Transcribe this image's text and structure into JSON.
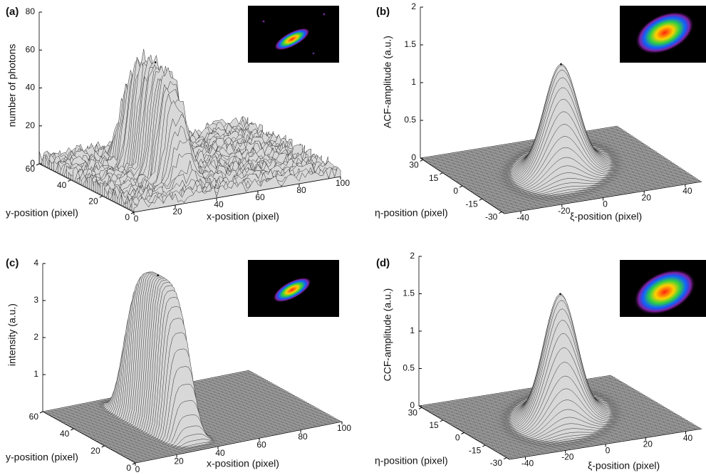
{
  "chart_data": [
    {
      "type": "surface",
      "panel": "(a)",
      "zlabel": "number of photons",
      "xlabel": "x-position (pixel)",
      "ylabel": "y-position (pixel)",
      "xlim": [
        0,
        100
      ],
      "ylim": [
        0,
        60
      ],
      "zlim": [
        0,
        80
      ],
      "xticks": [
        0,
        20,
        40,
        60,
        80,
        100
      ],
      "yticks": [
        0,
        20,
        40,
        60
      ],
      "zticks": [
        0,
        20,
        40,
        60,
        80
      ],
      "peak": 60
    },
    {
      "type": "surface",
      "panel": "(b)",
      "zlabel": "ACF-amplitude (a.u.)",
      "xlabel": "ξ-position (pixel)",
      "ylabel": "η-position (pixel)",
      "xlim": [
        -48,
        48
      ],
      "ylim": [
        -32,
        32
      ],
      "zlim": [
        0,
        2
      ],
      "xticks": [
        -40,
        -20,
        0,
        20,
        40
      ],
      "yticks": [
        -30,
        -15,
        0,
        15,
        30
      ],
      "zticks": [
        0,
        0.5,
        1,
        1.5,
        2
      ],
      "peak": 1.4
    },
    {
      "type": "surface",
      "panel": "(c)",
      "zlabel": "intensity (a.u.)",
      "xlabel": "x-position (pixel)",
      "ylabel": "y-position (pixel)",
      "xlim": [
        0,
        100
      ],
      "ylim": [
        0,
        60
      ],
      "zlim": [
        0,
        4
      ],
      "xticks": [
        0,
        20,
        40,
        60,
        80,
        100
      ],
      "yticks": [
        0,
        20,
        40,
        60
      ],
      "zticks": [
        1,
        2,
        3,
        4
      ],
      "peak": 4
    },
    {
      "type": "surface",
      "panel": "(d)",
      "zlabel": "CCF-amplitude (a.u.)",
      "xlabel": "ξ-position (pixel)",
      "ylabel": "η-position (pixel)",
      "xlim": [
        -48,
        48
      ],
      "ylim": [
        -32,
        32
      ],
      "zlim": [
        0,
        2
      ],
      "xticks": [
        -40,
        -20,
        0,
        20,
        40
      ],
      "yticks": [
        -30,
        -15,
        0,
        15,
        30
      ],
      "zticks": [
        0,
        0.5,
        1,
        1.5,
        2
      ],
      "peak": 1.65
    }
  ]
}
